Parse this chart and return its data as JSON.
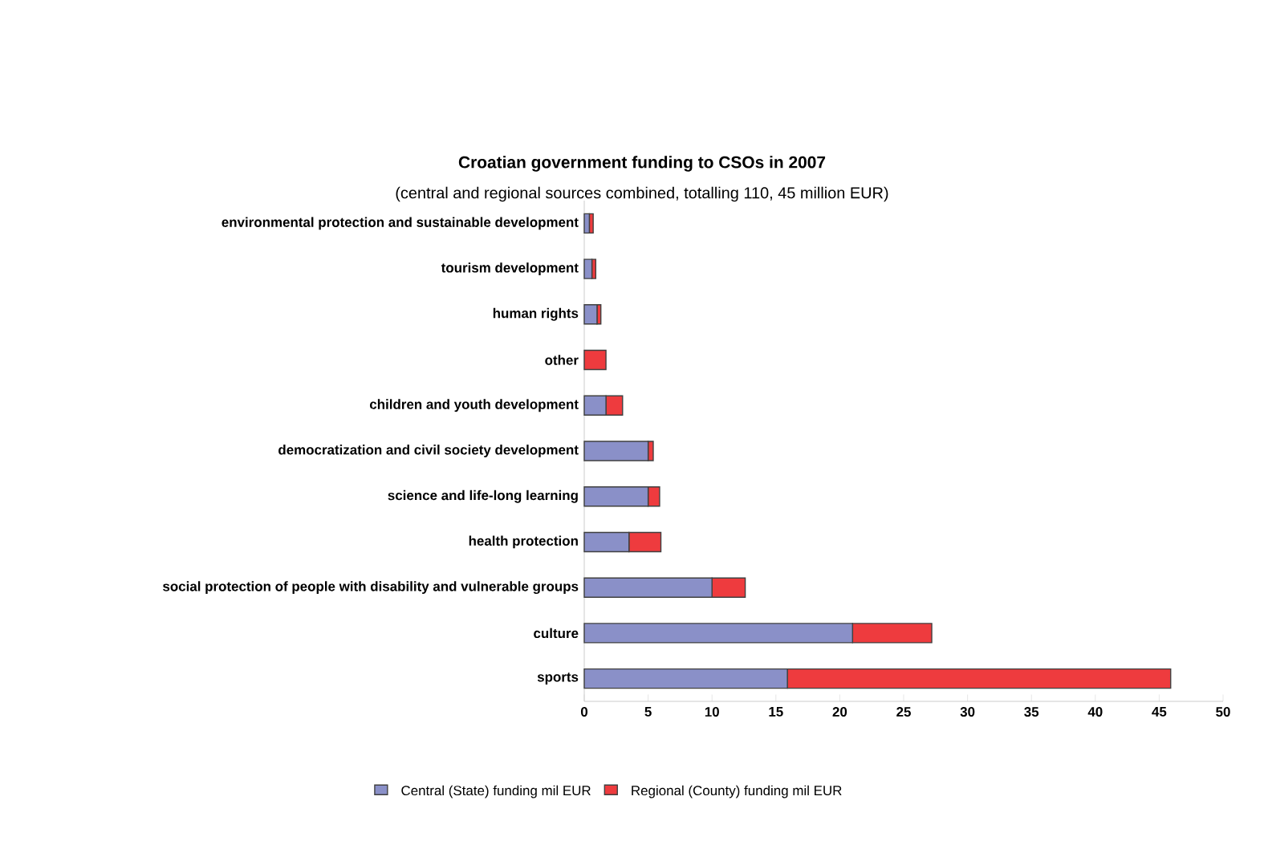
{
  "chart_data": {
    "type": "bar",
    "orientation": "horizontal",
    "stacked": true,
    "title": "Croatian government funding to CSOs in 2007",
    "subtitle": "(central and regional sources combined, totalling 110, 45 million EUR)",
    "categories": [
      "environmental protection and sustainable development",
      "tourism development",
      "human rights",
      "other",
      "children and youth development",
      "democratization and civil society development",
      "science and life-long learning",
      "health protection",
      "social protection of people with disability and vulnerable groups",
      "culture",
      "sports"
    ],
    "series": [
      {
        "name": "Central (State) funding mil EUR",
        "color": "#8a90c8",
        "values": [
          0.4,
          0.6,
          1.0,
          0,
          1.7,
          5.0,
          5.0,
          3.5,
          10.0,
          21.0,
          15.9
        ]
      },
      {
        "name": "Regional (County) funding mil EUR",
        "color": "#ee3b3e",
        "values": [
          0.3,
          0.3,
          0.3,
          1.7,
          1.3,
          0.4,
          0.9,
          2.5,
          2.6,
          6.2,
          30.0
        ]
      }
    ],
    "xlim": [
      0,
      50
    ],
    "xticks": [
      0,
      5,
      10,
      15,
      20,
      25,
      30,
      35,
      40,
      45,
      50
    ],
    "grid": false,
    "legend": "bottom"
  }
}
